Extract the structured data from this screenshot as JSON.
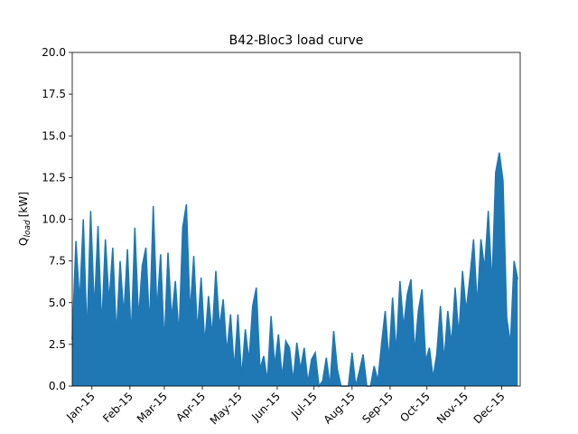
{
  "chart_data": {
    "type": "area",
    "title": "B42-Bloc3 load curve",
    "y_label": {
      "main": "Q",
      "subscript": "load",
      "unit": "[kW]"
    },
    "color": "#1f77b4",
    "x": [
      0,
      3,
      6,
      9,
      12,
      15,
      18,
      21,
      24,
      27,
      30,
      33,
      36,
      39,
      42,
      45,
      48,
      51,
      54,
      57,
      60,
      63,
      66,
      69,
      72,
      75,
      78,
      81,
      84,
      87,
      90,
      93,
      96,
      99,
      102,
      105,
      108,
      111,
      114,
      117,
      120,
      123,
      126,
      129,
      132,
      135,
      138,
      141,
      144,
      147,
      150,
      153,
      156,
      159,
      162,
      165,
      168,
      171,
      174,
      177,
      180,
      183,
      186,
      189,
      192,
      195,
      198,
      201,
      204,
      207,
      210,
      213,
      216,
      219,
      222,
      225,
      228,
      231,
      234,
      237,
      240,
      243,
      246,
      249,
      252,
      255,
      258,
      261,
      264,
      267,
      270,
      273,
      276,
      279,
      282,
      285,
      288,
      291,
      294,
      297,
      300,
      303,
      306,
      309,
      312,
      315,
      318,
      321,
      324,
      327,
      330,
      333,
      336,
      339,
      342,
      345,
      348,
      351,
      354,
      357,
      360,
      363
    ],
    "values": [
      2.8,
      8.7,
      5.0,
      10.0,
      3.0,
      10.5,
      4.5,
      9.6,
      3.5,
      8.8,
      5.0,
      8.3,
      3.0,
      7.5,
      4.2,
      8.2,
      2.8,
      9.5,
      4.0,
      7.2,
      8.3,
      3.5,
      10.8,
      4.5,
      7.9,
      2.5,
      8.0,
      4.0,
      6.3,
      3.0,
      9.5,
      10.9,
      4.3,
      7.8,
      3.2,
      6.5,
      2.5,
      5.4,
      3.0,
      6.9,
      3.5,
      5.2,
      2.0,
      4.3,
      1.0,
      4.3,
      0.5,
      3.4,
      1.5,
      4.8,
      5.9,
      1.0,
      1.8,
      0.3,
      4.2,
      1.2,
      3.1,
      0.5,
      2.7,
      2.3,
      0.3,
      2.6,
      1.0,
      2.3,
      0.2,
      1.6,
      2.0,
      0.0,
      0.3,
      1.7,
      0.0,
      3.3,
      1.0,
      0.0,
      0.0,
      0.0,
      2.0,
      0.0,
      0.9,
      1.9,
      0.0,
      0.0,
      1.2,
      0.3,
      2.5,
      4.5,
      1.5,
      5.3,
      2.0,
      6.3,
      3.5,
      5.5,
      6.4,
      2.0,
      4.5,
      5.8,
      1.5,
      2.3,
      0.5,
      1.9,
      4.8,
      1.5,
      4.5,
      2.5,
      5.9,
      3.0,
      6.9,
      4.5,
      6.5,
      8.8,
      4.8,
      8.8,
      7.0,
      10.5,
      6.0,
      12.8,
      14.0,
      12.3,
      4.1,
      2.5,
      7.5,
      6.4
    ],
    "xlim": [
      0,
      365
    ],
    "xticks": [
      {
        "value": 16,
        "label": "Jan-15"
      },
      {
        "value": 47,
        "label": "Feb-15"
      },
      {
        "value": 75,
        "label": "Mar-15"
      },
      {
        "value": 106,
        "label": "Apr-15"
      },
      {
        "value": 136,
        "label": "May-15"
      },
      {
        "value": 167,
        "label": "Jun-15"
      },
      {
        "value": 197,
        "label": "Jul-15"
      },
      {
        "value": 228,
        "label": "Aug-15"
      },
      {
        "value": 259,
        "label": "Sep-15"
      },
      {
        "value": 289,
        "label": "Oct-15"
      },
      {
        "value": 320,
        "label": "Nov-15"
      },
      {
        "value": 350,
        "label": "Dec-15"
      }
    ],
    "ylim": [
      0,
      20
    ],
    "yticks": [
      {
        "value": 0,
        "label": "0.0"
      },
      2.5,
      {
        "value": 5,
        "label": "5.0"
      },
      7.5,
      {
        "value": 10,
        "label": "10.0"
      },
      12.5,
      {
        "value": 15,
        "label": "15.0"
      },
      17.5,
      {
        "value": 20,
        "label": "20.0"
      }
    ]
  }
}
